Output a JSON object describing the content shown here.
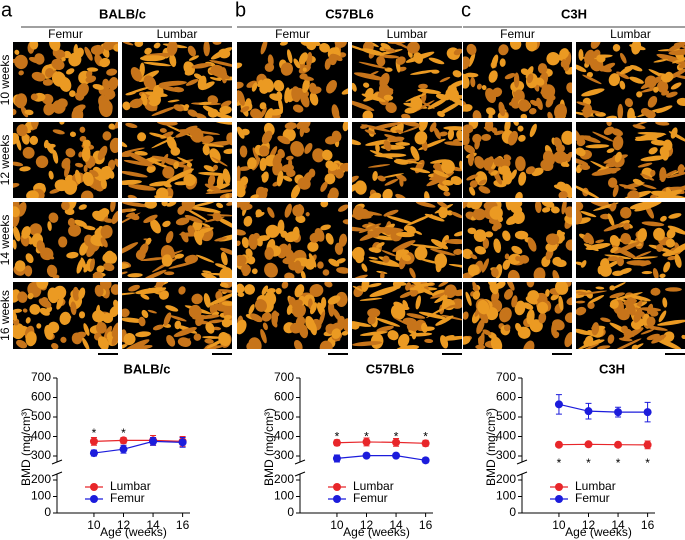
{
  "figure": {
    "panels": [
      {
        "letter": "a",
        "title": "BALB/c"
      },
      {
        "letter": "b",
        "title": "C57BL6"
      },
      {
        "letter": "c",
        "title": "C3H"
      }
    ],
    "columns": [
      "Femur",
      "Lumbar"
    ],
    "rows": [
      "10 weeks",
      "12 weeks",
      "14 weeks",
      "16 weeks"
    ]
  },
  "chart_data": [
    {
      "type": "line",
      "title": "BALB/c",
      "x_label": "Age (weeks)",
      "y_label": "BMD (mg/cm³)",
      "x": [
        10,
        12,
        14,
        16
      ],
      "xlim": [
        7.5,
        16.5
      ],
      "xticks": [
        10,
        12,
        14,
        16
      ],
      "ylim": [
        0,
        700
      ],
      "yticks": [
        0,
        100,
        200,
        300,
        400,
        500,
        600,
        700
      ],
      "axis_break": [
        200,
        300
      ],
      "legend": "lower-left",
      "series": [
        {
          "name": "Lumbar",
          "color": "#e8262a",
          "values": [
            375,
            380,
            380,
            375
          ],
          "errors": [
            20,
            15,
            25,
            25
          ]
        },
        {
          "name": "Femur",
          "color": "#1c1cdc",
          "values": [
            315,
            335,
            375,
            370
          ],
          "errors": [
            15,
            20,
            20,
            25
          ]
        }
      ],
      "annotations": [
        {
          "x": 10,
          "y": 430,
          "text": "*"
        },
        {
          "x": 12,
          "y": 430,
          "text": "*"
        }
      ]
    },
    {
      "type": "line",
      "title": "C57BL6",
      "x_label": "Age (weeks)",
      "y_label": "BMD (mg/cm³)",
      "x": [
        10,
        12,
        14,
        16
      ],
      "xlim": [
        7.5,
        16.5
      ],
      "xticks": [
        10,
        12,
        14,
        16
      ],
      "ylim": [
        0,
        700
      ],
      "yticks": [
        0,
        100,
        200,
        300,
        400,
        500,
        600,
        700
      ],
      "axis_break": [
        200,
        300
      ],
      "legend": "lower-left",
      "series": [
        {
          "name": "Lumbar",
          "color": "#e8262a",
          "values": [
            368,
            372,
            370,
            365
          ],
          "errors": [
            15,
            20,
            20,
            15
          ]
        },
        {
          "name": "Femur",
          "color": "#1c1cdc",
          "values": [
            290,
            302,
            302,
            282
          ],
          "errors": [
            15,
            8,
            10,
            10
          ]
        }
      ],
      "annotations": [
        {
          "x": 10,
          "y": 410,
          "text": "*"
        },
        {
          "x": 12,
          "y": 410,
          "text": "*"
        },
        {
          "x": 14,
          "y": 410,
          "text": "*"
        },
        {
          "x": 16,
          "y": 410,
          "text": "*"
        }
      ]
    },
    {
      "type": "line",
      "title": "C3H",
      "x_label": "Age (weeks)",
      "y_label": "BMD (mg/cm³)",
      "x": [
        10,
        12,
        14,
        16
      ],
      "xlim": [
        7.5,
        16.5
      ],
      "xticks": [
        10,
        12,
        14,
        16
      ],
      "ylim": [
        0,
        700
      ],
      "yticks": [
        0,
        100,
        200,
        300,
        400,
        500,
        600,
        700
      ],
      "axis_break": [
        200,
        300
      ],
      "legend": "lower-left",
      "series": [
        {
          "name": "Lumbar",
          "color": "#e8262a",
          "values": [
            358,
            360,
            358,
            357
          ],
          "errors": [
            10,
            10,
            10,
            20
          ]
        },
        {
          "name": "Femur",
          "color": "#1c1cdc",
          "values": [
            565,
            530,
            525,
            525
          ],
          "errors": [
            50,
            40,
            25,
            50
          ]
        }
      ],
      "annotations": [
        {
          "x": 10,
          "y": 280,
          "text": "*"
        },
        {
          "x": 12,
          "y": 280,
          "text": "*"
        },
        {
          "x": 14,
          "y": 280,
          "text": "*"
        },
        {
          "x": 16,
          "y": 280,
          "text": "*"
        }
      ]
    }
  ]
}
